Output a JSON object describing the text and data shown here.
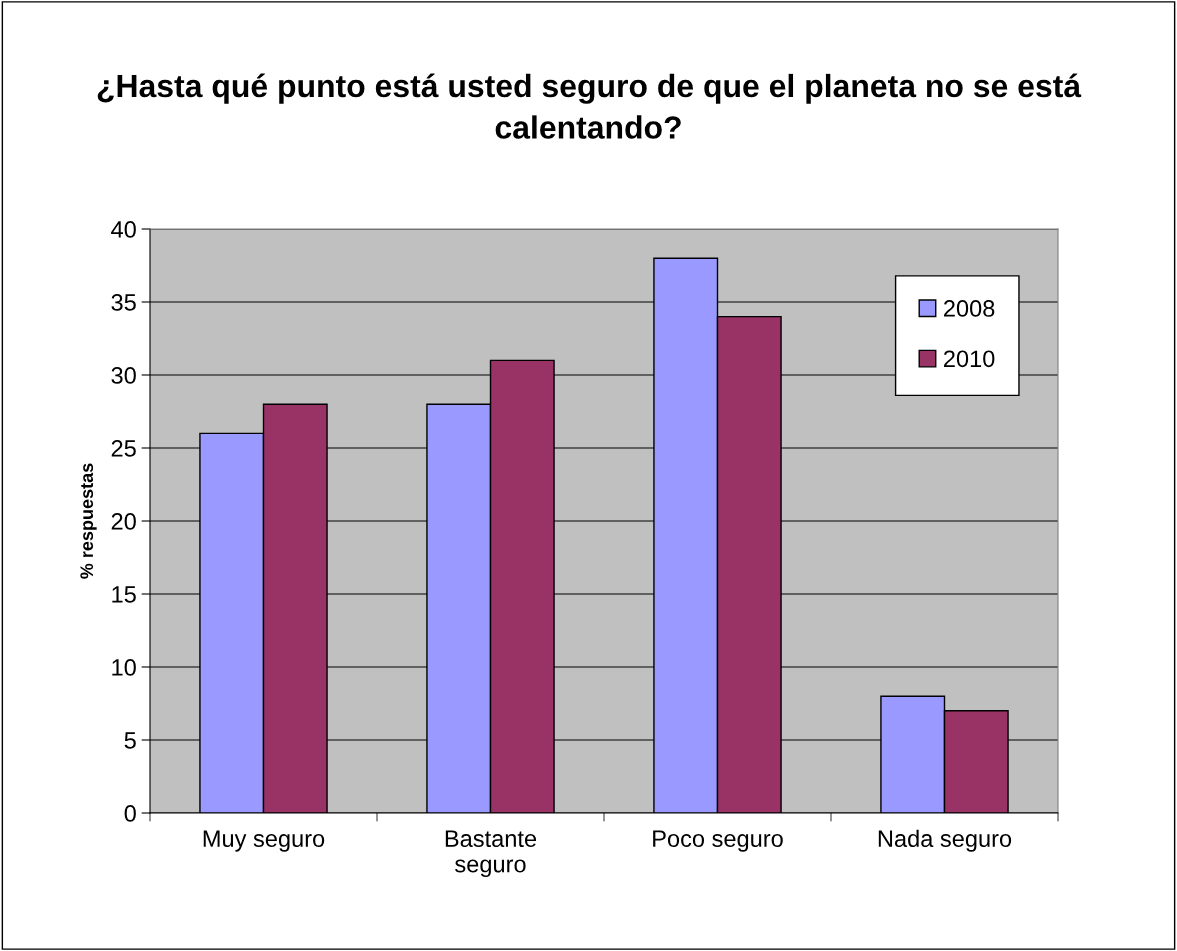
{
  "chart_data": {
    "type": "bar",
    "title": "¿Hasta qué punto está usted seguro de que el planeta no se está calentando?",
    "ylabel": "% respuestas",
    "categories": [
      "Muy seguro",
      "Bastante seguro",
      "Poco seguro",
      "Nada seguro"
    ],
    "series": [
      {
        "name": "2008",
        "color": "#9999ff",
        "values": [
          26,
          28,
          38,
          8
        ]
      },
      {
        "name": "2010",
        "color": "#993366",
        "values": [
          28,
          31,
          34,
          7
        ]
      }
    ],
    "ylim": [
      0,
      40
    ],
    "yticks": [
      0,
      5,
      10,
      15,
      20,
      25,
      30,
      35,
      40
    ],
    "grid": "y",
    "legend": "top right"
  }
}
